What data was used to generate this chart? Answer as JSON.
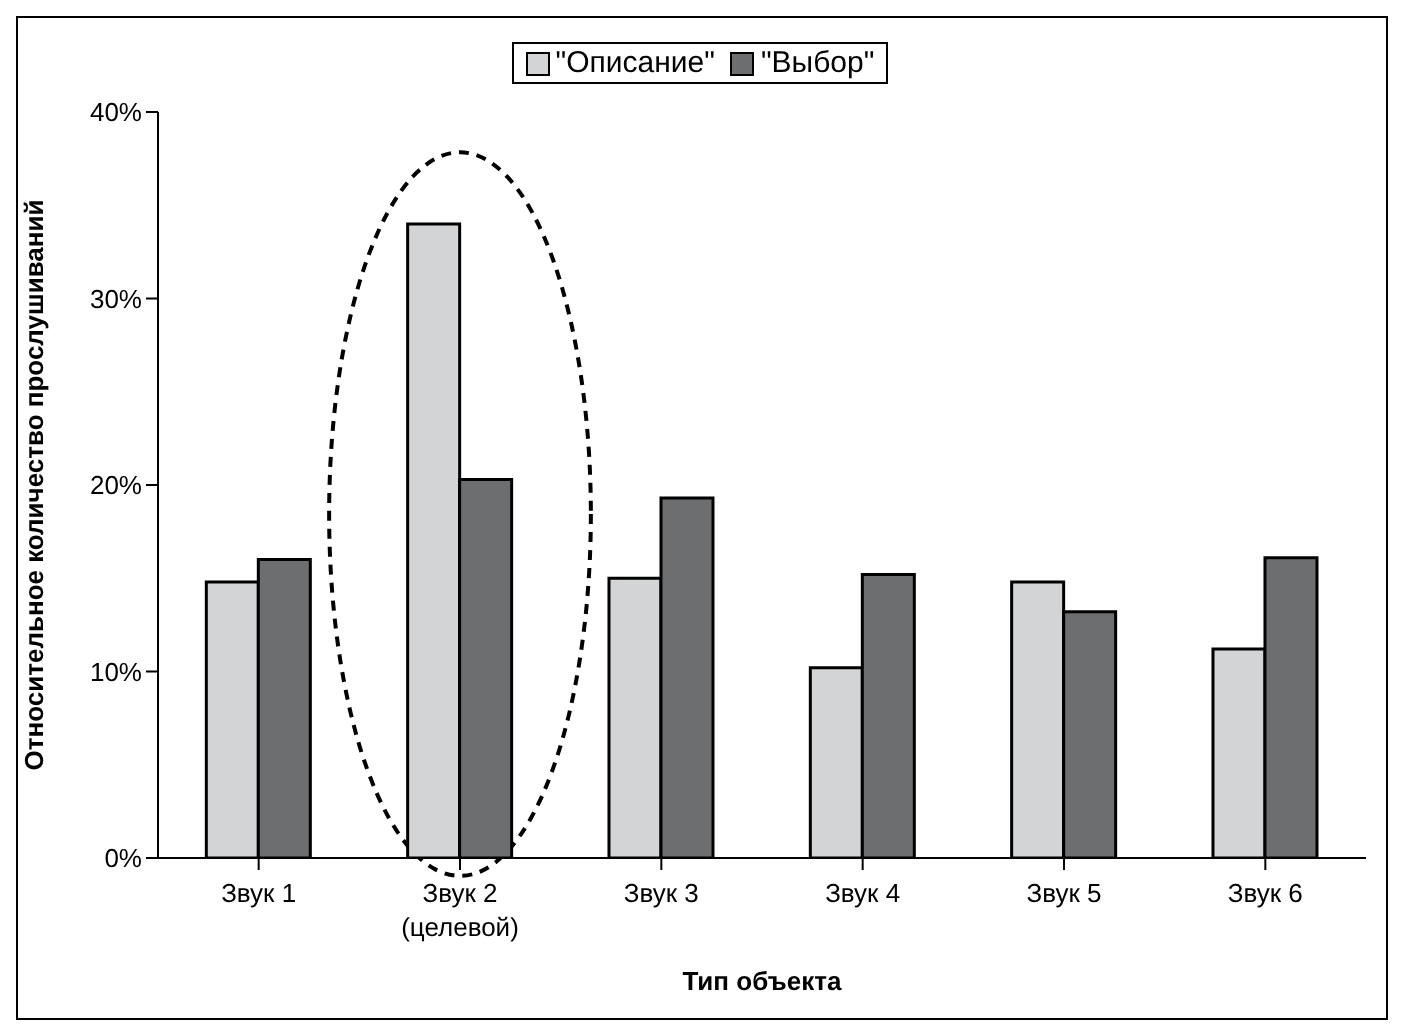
{
  "chart_data": {
    "type": "bar",
    "xlabel": "Тип объекта",
    "ylabel": "Относительное количество прослушиваний",
    "categories": [
      "Звук 1",
      "Звук 2\n(целевой)",
      "Звук 3",
      "Звук 4",
      "Звук 5",
      "Звук 6"
    ],
    "series": [
      {
        "name": "\"Описание\"",
        "color": "#d3d4d6",
        "values": [
          14.8,
          34.0,
          15.0,
          10.2,
          14.8,
          11.2
        ]
      },
      {
        "name": "\"Выбор\"",
        "color": "#6d6e70",
        "values": [
          16.0,
          20.3,
          19.3,
          15.2,
          13.2,
          16.1
        ]
      }
    ],
    "ylim": [
      0,
      40
    ],
    "yticks": [
      {
        "value": 0,
        "label": "0%"
      },
      {
        "value": 10,
        "label": "10%"
      },
      {
        "value": 20,
        "label": "20%"
      },
      {
        "value": 30,
        "label": "30%"
      },
      {
        "value": 40,
        "label": "40%"
      }
    ],
    "grid": false,
    "legend": "top"
  }
}
